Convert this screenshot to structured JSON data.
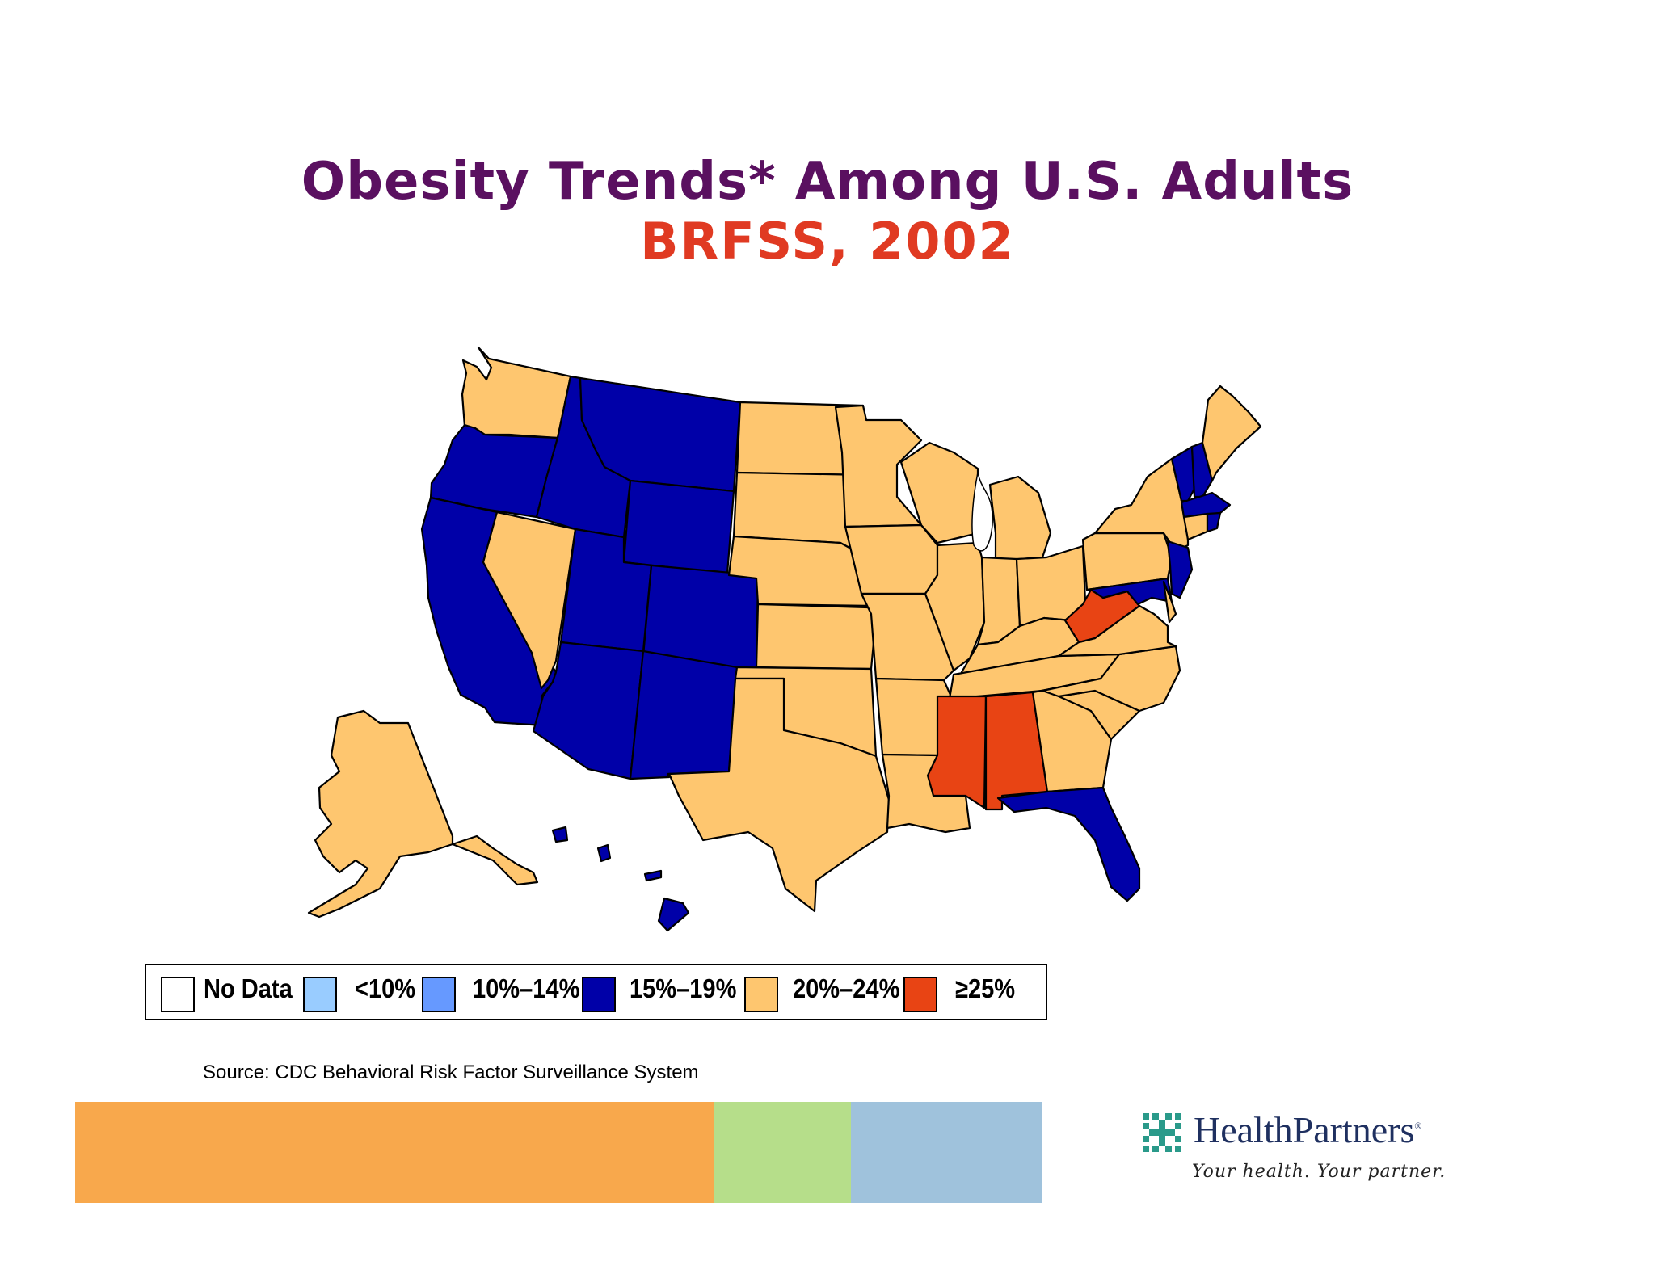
{
  "title": {
    "line1": "Obesity Trends* Among U.S. Adults",
    "line2": "BRFSS, 2002"
  },
  "legend": [
    {
      "label": "No Data",
      "color": "#ffffff"
    },
    {
      "label": "<10%",
      "color": "#99ccff"
    },
    {
      "label": "10%–14%",
      "color": "#6699ff"
    },
    {
      "label": "15%–19%",
      "color": "#0000a8"
    },
    {
      "label": "20%–24%",
      "color": "#fec66f"
    },
    {
      "label": "≥25%",
      "color": "#e84414"
    }
  ],
  "map": {
    "states": [
      {
        "name": "WA",
        "category": "20%–24%"
      },
      {
        "name": "OR",
        "category": "15%–19%"
      },
      {
        "name": "CA",
        "category": "15%–19%"
      },
      {
        "name": "NV",
        "category": "20%–24%"
      },
      {
        "name": "ID",
        "category": "15%–19%"
      },
      {
        "name": "MT",
        "category": "15%–19%"
      },
      {
        "name": "WY",
        "category": "15%–19%"
      },
      {
        "name": "UT",
        "category": "15%–19%"
      },
      {
        "name": "CO",
        "category": "15%–19%"
      },
      {
        "name": "AZ",
        "category": "15%–19%"
      },
      {
        "name": "NM",
        "category": "15%–19%"
      },
      {
        "name": "ND",
        "category": "20%–24%"
      },
      {
        "name": "SD",
        "category": "20%–24%"
      },
      {
        "name": "NE",
        "category": "20%–24%"
      },
      {
        "name": "KS",
        "category": "20%–24%"
      },
      {
        "name": "OK",
        "category": "20%–24%"
      },
      {
        "name": "TX",
        "category": "20%–24%"
      },
      {
        "name": "MN",
        "category": "20%–24%"
      },
      {
        "name": "IA",
        "category": "20%–24%"
      },
      {
        "name": "MO",
        "category": "20%–24%"
      },
      {
        "name": "AR",
        "category": "20%–24%"
      },
      {
        "name": "LA",
        "category": "20%–24%"
      },
      {
        "name": "WI",
        "category": "20%–24%"
      },
      {
        "name": "IL",
        "category": "20%–24%"
      },
      {
        "name": "MI",
        "category": "20%–24%"
      },
      {
        "name": "IN",
        "category": "20%–24%"
      },
      {
        "name": "OH",
        "category": "20%–24%"
      },
      {
        "name": "KY",
        "category": "20%–24%"
      },
      {
        "name": "TN",
        "category": "20%–24%"
      },
      {
        "name": "MS",
        "category": "≥25%"
      },
      {
        "name": "AL",
        "category": "≥25%"
      },
      {
        "name": "GA",
        "category": "20%–24%"
      },
      {
        "name": "FL",
        "category": "15%–19%"
      },
      {
        "name": "SC",
        "category": "20%–24%"
      },
      {
        "name": "NC",
        "category": "20%–24%"
      },
      {
        "name": "VA",
        "category": "20%–24%"
      },
      {
        "name": "WV",
        "category": "≥25%"
      },
      {
        "name": "PA",
        "category": "20%–24%"
      },
      {
        "name": "NY",
        "category": "20%–24%"
      },
      {
        "name": "MD",
        "category": "15%–19%"
      },
      {
        "name": "DE",
        "category": "20%–24%"
      },
      {
        "name": "NJ",
        "category": "15%–19%"
      },
      {
        "name": "VT",
        "category": "15%–19%"
      },
      {
        "name": "NH",
        "category": "15%–19%"
      },
      {
        "name": "ME",
        "category": "20%–24%"
      },
      {
        "name": "MA",
        "category": "15%–19%"
      },
      {
        "name": "CT",
        "category": "20%–24%"
      },
      {
        "name": "RI",
        "category": "15%–19%"
      },
      {
        "name": "AK",
        "category": "20%–24%"
      },
      {
        "name": "HI",
        "category": "15%–19%"
      }
    ]
  },
  "source": "Source: CDC Behavioral Risk Factor Surveillance  System",
  "footer_band_colors": [
    "#f8a84c",
    "#b6de8a",
    "#9fc2dc"
  ],
  "logo": {
    "name": "HealthPartners",
    "registered": "®",
    "tagline": "Your health. Your partner.",
    "icon": "healthpartners-grid-icon"
  }
}
